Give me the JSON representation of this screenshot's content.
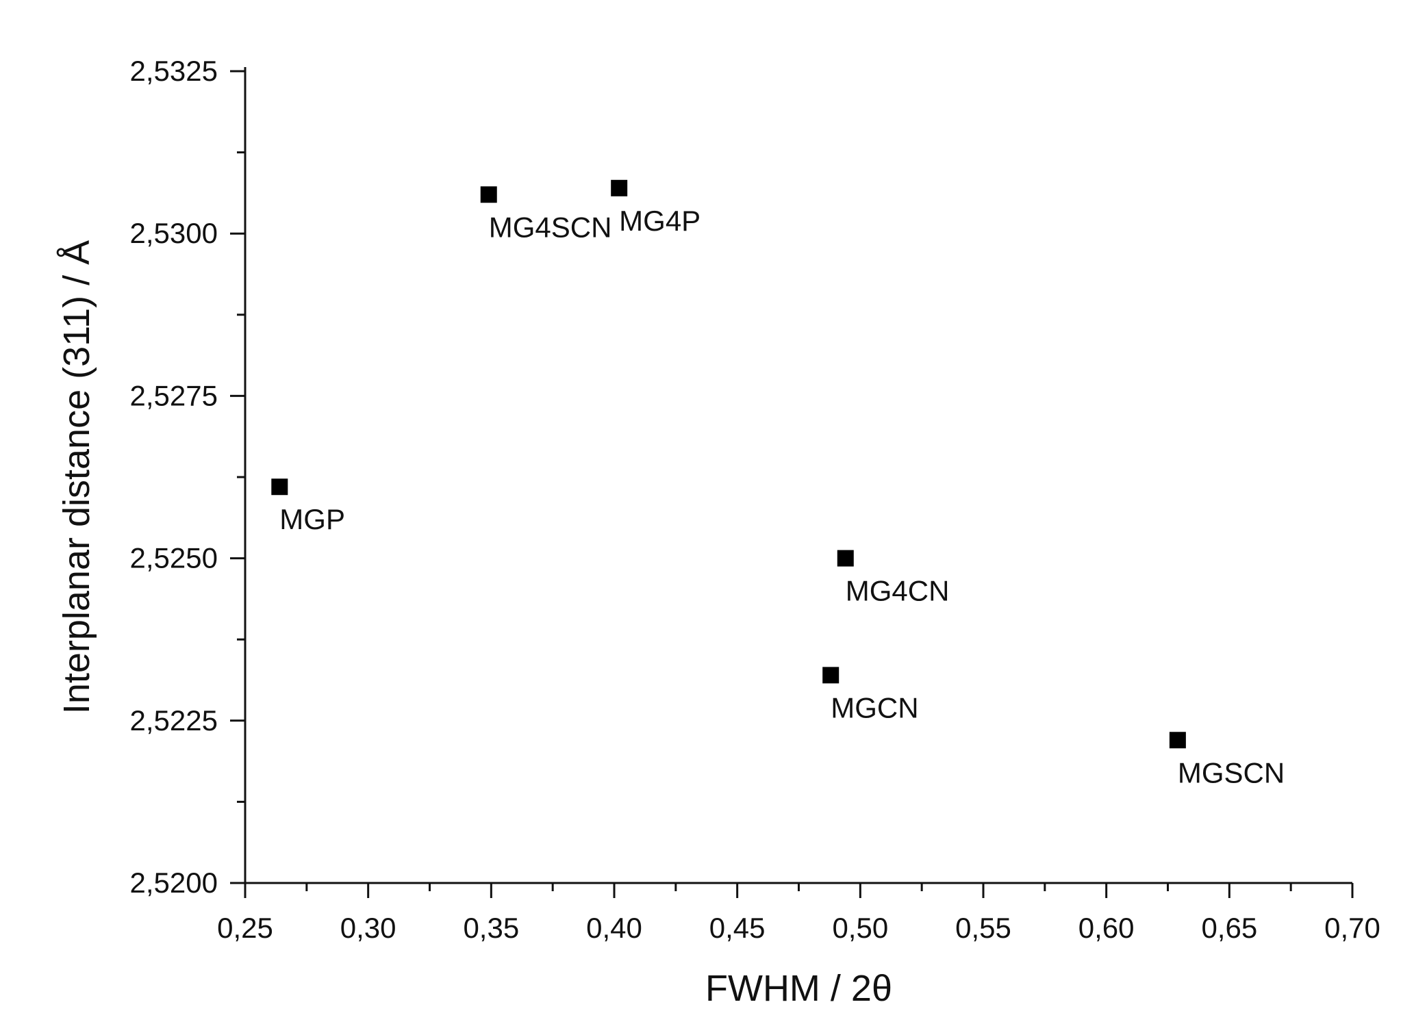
{
  "chart_data": {
    "type": "scatter",
    "title": "",
    "xlabel": "FWHM / 2θ",
    "ylabel": "Interplanar distance (311) / Å",
    "xlim": [
      0.25,
      0.7
    ],
    "ylim": [
      2.52,
      2.5325
    ],
    "x_ticks": [
      0.25,
      0.3,
      0.35,
      0.4,
      0.45,
      0.5,
      0.55,
      0.6,
      0.65,
      0.7
    ],
    "x_tick_labels": [
      "0,25",
      "0,30",
      "0,35",
      "0,40",
      "0,45",
      "0,50",
      "0,55",
      "0,60",
      "0,65",
      "0,70"
    ],
    "y_ticks": [
      2.52,
      2.5225,
      2.525,
      2.5275,
      2.53,
      2.5325
    ],
    "y_tick_labels": [
      "2,5200",
      "2,5225",
      "2,5250",
      "2,5275",
      "2,5300",
      "2,5325"
    ],
    "grid": false,
    "legend": null,
    "marker": "square",
    "marker_color": "#000000",
    "points": [
      {
        "label": "MGP",
        "x": 0.264,
        "y": 2.5261
      },
      {
        "label": "MG4SCN",
        "x": 0.349,
        "y": 2.5306
      },
      {
        "label": "MG4P",
        "x": 0.402,
        "y": 2.5307
      },
      {
        "label": "MG4CN",
        "x": 0.494,
        "y": 2.525
      },
      {
        "label": "MGCN",
        "x": 0.488,
        "y": 2.5232
      },
      {
        "label": "MGSCN",
        "x": 0.629,
        "y": 2.5222
      }
    ]
  }
}
